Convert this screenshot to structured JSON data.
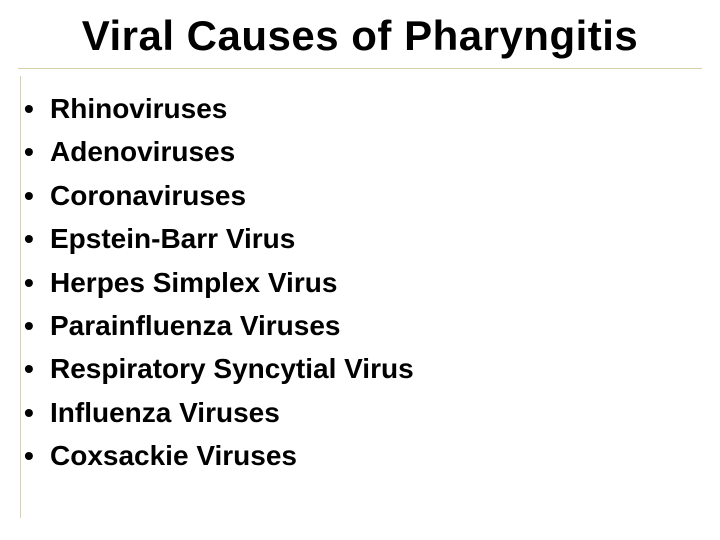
{
  "title": "Viral Causes of Pharyngitis",
  "title_fontsize": 42,
  "title_color": "#000000",
  "background_color": "#ffffff",
  "divider_color": "#d9cfa8",
  "bullet_char": "•",
  "item_fontsize": 28,
  "item_color": "#000000",
  "items": [
    "Rhinoviruses",
    "Adenoviruses",
    "Coronaviruses",
    "Epstein-Barr Virus",
    "Herpes Simplex Virus",
    "Parainfluenza Viruses",
    "Respiratory Syncytial Virus",
    "Influenza Viruses",
    "Coxsackie Viruses"
  ]
}
